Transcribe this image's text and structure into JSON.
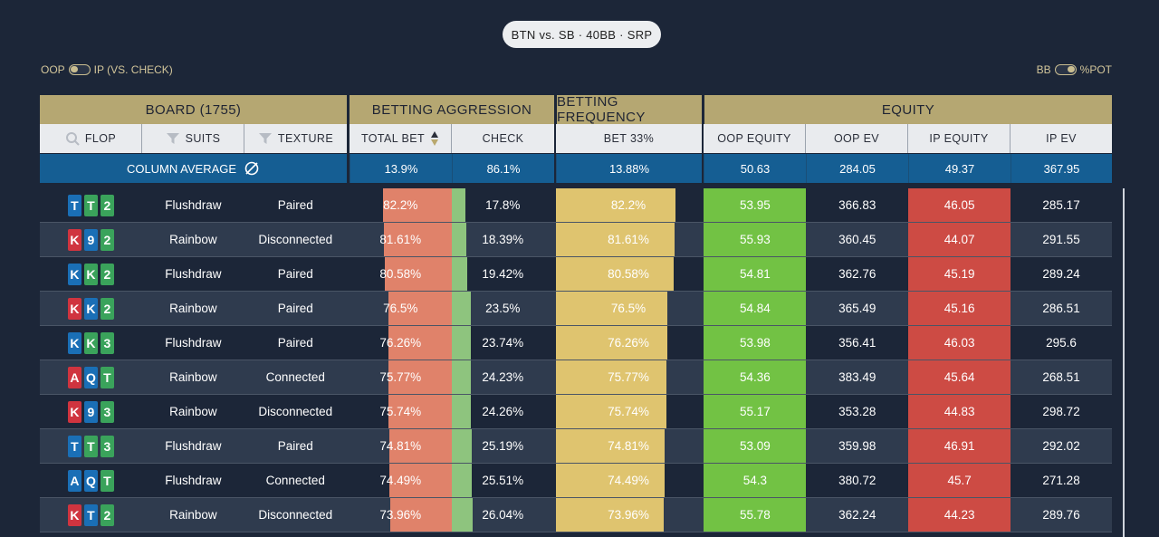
{
  "title": "BTN vs. SB · 40BB · SRP",
  "toggles": {
    "left": {
      "label_a": "OOP",
      "label_b": "IP (VS. CHECK)"
    },
    "right": {
      "label_a": "BB",
      "label_b": "%POT"
    }
  },
  "groups": {
    "board": "BOARD (1755)",
    "aggression": "BETTING AGGRESSION",
    "frequency": "BETTING FREQUENCY",
    "equity": "EQUITY"
  },
  "columns": {
    "flop": "FLOP",
    "suits": "SUITS",
    "texture": "TEXTURE",
    "total_bet": "TOTAL BET",
    "check": "CHECK",
    "bet33": "BET 33%",
    "oop_equity": "OOP EQUITY",
    "oop_ev": "OOP EV",
    "ip_equity": "IP EQUITY",
    "ip_ev": "IP EV"
  },
  "average": {
    "label": "COLUMN AVERAGE",
    "total_bet": "13.9%",
    "check": "86.1%",
    "bet33": "13.88%",
    "oop_equity": "50.63",
    "oop_ev": "284.05",
    "ip_equity": "49.37",
    "ip_ev": "367.95"
  },
  "colors": {
    "card_red": "#d0343f",
    "card_blue": "#1a6fb6",
    "card_green": "#3aa35b",
    "bet_bar": "#e0826a",
    "check_bar": "#8ec47e",
    "freq_bar": "#dfc46f",
    "oop_equity_bg": "#72c244",
    "ip_equity_bg": "#cd4b44",
    "average_bg": "#155e93",
    "group_header_bg": "#b5a772"
  },
  "rows": [
    {
      "cards": [
        {
          "r": "T",
          "c": "b"
        },
        {
          "r": "T",
          "c": "g"
        },
        {
          "r": "2",
          "c": "g"
        }
      ],
      "suits": "Flushdraw",
      "texture": "Paired",
      "bet": "82.2%",
      "bet_v": 82.2,
      "check": "17.8%",
      "freq": "82.2%",
      "oop_eq": "53.95",
      "oop_ev": "366.83",
      "ip_eq": "46.05",
      "ip_ev": "285.17"
    },
    {
      "cards": [
        {
          "r": "K",
          "c": "r"
        },
        {
          "r": "9",
          "c": "b"
        },
        {
          "r": "2",
          "c": "g"
        }
      ],
      "suits": "Rainbow",
      "texture": "Disconnected",
      "bet": "81.61%",
      "bet_v": 81.61,
      "check": "18.39%",
      "freq": "81.61%",
      "oop_eq": "55.93",
      "oop_ev": "360.45",
      "ip_eq": "44.07",
      "ip_ev": "291.55"
    },
    {
      "cards": [
        {
          "r": "K",
          "c": "b"
        },
        {
          "r": "K",
          "c": "g"
        },
        {
          "r": "2",
          "c": "g"
        }
      ],
      "suits": "Flushdraw",
      "texture": "Paired",
      "bet": "80.58%",
      "bet_v": 80.58,
      "check": "19.42%",
      "freq": "80.58%",
      "oop_eq": "54.81",
      "oop_ev": "362.76",
      "ip_eq": "45.19",
      "ip_ev": "289.24"
    },
    {
      "cards": [
        {
          "r": "K",
          "c": "r"
        },
        {
          "r": "K",
          "c": "b"
        },
        {
          "r": "2",
          "c": "g"
        }
      ],
      "suits": "Rainbow",
      "texture": "Paired",
      "bet": "76.5%",
      "bet_v": 76.5,
      "check": "23.5%",
      "freq": "76.5%",
      "oop_eq": "54.84",
      "oop_ev": "365.49",
      "ip_eq": "45.16",
      "ip_ev": "286.51"
    },
    {
      "cards": [
        {
          "r": "K",
          "c": "b"
        },
        {
          "r": "K",
          "c": "g"
        },
        {
          "r": "3",
          "c": "g"
        }
      ],
      "suits": "Flushdraw",
      "texture": "Paired",
      "bet": "76.26%",
      "bet_v": 76.26,
      "check": "23.74%",
      "freq": "76.26%",
      "oop_eq": "53.98",
      "oop_ev": "356.41",
      "ip_eq": "46.03",
      "ip_ev": "295.6"
    },
    {
      "cards": [
        {
          "r": "A",
          "c": "r"
        },
        {
          "r": "Q",
          "c": "b"
        },
        {
          "r": "T",
          "c": "g"
        }
      ],
      "suits": "Rainbow",
      "texture": "Connected",
      "bet": "75.77%",
      "bet_v": 75.77,
      "check": "24.23%",
      "freq": "75.77%",
      "oop_eq": "54.36",
      "oop_ev": "383.49",
      "ip_eq": "45.64",
      "ip_ev": "268.51"
    },
    {
      "cards": [
        {
          "r": "K",
          "c": "r"
        },
        {
          "r": "9",
          "c": "b"
        },
        {
          "r": "3",
          "c": "g"
        }
      ],
      "suits": "Rainbow",
      "texture": "Disconnected",
      "bet": "75.74%",
      "bet_v": 75.74,
      "check": "24.26%",
      "freq": "75.74%",
      "oop_eq": "55.17",
      "oop_ev": "353.28",
      "ip_eq": "44.83",
      "ip_ev": "298.72"
    },
    {
      "cards": [
        {
          "r": "T",
          "c": "b"
        },
        {
          "r": "T",
          "c": "g"
        },
        {
          "r": "3",
          "c": "g"
        }
      ],
      "suits": "Flushdraw",
      "texture": "Paired",
      "bet": "74.81%",
      "bet_v": 74.81,
      "check": "25.19%",
      "freq": "74.81%",
      "oop_eq": "53.09",
      "oop_ev": "359.98",
      "ip_eq": "46.91",
      "ip_ev": "292.02"
    },
    {
      "cards": [
        {
          "r": "A",
          "c": "b"
        },
        {
          "r": "Q",
          "c": "b"
        },
        {
          "r": "T",
          "c": "g"
        }
      ],
      "suits": "Flushdraw",
      "texture": "Connected",
      "bet": "74.49%",
      "bet_v": 74.49,
      "check": "25.51%",
      "freq": "74.49%",
      "oop_eq": "54.3",
      "oop_ev": "380.72",
      "ip_eq": "45.7",
      "ip_ev": "271.28"
    },
    {
      "cards": [
        {
          "r": "K",
          "c": "r"
        },
        {
          "r": "T",
          "c": "b"
        },
        {
          "r": "2",
          "c": "g"
        }
      ],
      "suits": "Rainbow",
      "texture": "Disconnected",
      "bet": "73.96%",
      "bet_v": 73.96,
      "check": "26.04%",
      "freq": "73.96%",
      "oop_eq": "55.78",
      "oop_ev": "362.24",
      "ip_eq": "44.23",
      "ip_ev": "289.76"
    }
  ]
}
